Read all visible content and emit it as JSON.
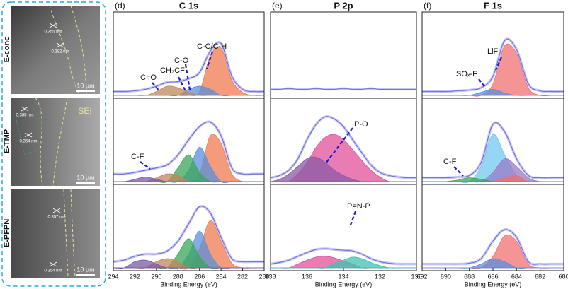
{
  "images": {
    "panels": [
      {
        "label": "E-conc",
        "scale_bar": "10 μm",
        "annotations": [
          "0.355 nm",
          "0.382 nm"
        ]
      },
      {
        "label": "E-TMP",
        "scale_bar": "10 μm",
        "annotations": [
          "0.385 nm",
          "0.364 nm",
          "SEI"
        ]
      },
      {
        "label": "E-PFPN",
        "scale_bar": "10 μm",
        "annotations": [
          "0.357 nm",
          "0.354 nm"
        ]
      }
    ]
  },
  "chart_data": [
    {
      "type": "line",
      "panel_label": "(d)",
      "title": "C 1s",
      "xlim": [
        294,
        280
      ],
      "x": [
        294,
        293,
        292,
        291,
        290,
        289,
        288,
        287,
        286,
        285,
        284,
        283,
        282,
        281,
        280
      ],
      "ylim": [
        0,
        100
      ],
      "annotations": [
        "C=O",
        "CH₂CF₂",
        "C-O",
        "C-C/C-H"
      ],
      "series": [
        {
          "color": "#f07a50",
          "fill": true,
          "values": [
            0,
            0,
            0,
            0,
            0,
            0,
            0,
            0,
            5,
            52,
            62,
            20,
            4,
            0,
            0
          ]
        },
        {
          "color": "#5b8fd9",
          "fill": true,
          "values": [
            0,
            0,
            0,
            0,
            0,
            0,
            0,
            8,
            12,
            8,
            0,
            0,
            0,
            0,
            0
          ]
        },
        {
          "color": "#c0875a",
          "fill": true,
          "values": [
            0,
            0,
            0,
            0,
            5,
            12,
            10,
            4,
            0,
            0,
            0,
            0,
            0,
            0,
            0
          ]
        },
        {
          "color": "#9b9bf0",
          "fill": false,
          "values": [
            5,
            5,
            6,
            8,
            12,
            17,
            18,
            22,
            30,
            58,
            68,
            25,
            8,
            5,
            5
          ]
        }
      ]
    },
    {
      "type": "line",
      "xlim": [
        294,
        280
      ],
      "x": [
        294,
        293,
        292,
        291,
        290,
        289,
        288,
        287,
        286,
        285,
        284,
        283,
        282,
        281,
        280
      ],
      "ylim": [
        0,
        100
      ],
      "annotations": [
        "C-F"
      ],
      "series": [
        {
          "color": "#f07a50",
          "fill": true,
          "values": [
            0,
            0,
            0,
            0,
            0,
            0,
            0,
            0,
            10,
            60,
            50,
            10,
            0,
            0,
            0
          ]
        },
        {
          "color": "#5b8fd9",
          "fill": true,
          "values": [
            0,
            0,
            0,
            0,
            0,
            0,
            0,
            15,
            45,
            20,
            0,
            0,
            0,
            0,
            0
          ]
        },
        {
          "color": "#3aa55a",
          "fill": true,
          "values": [
            0,
            0,
            0,
            0,
            0,
            0,
            18,
            35,
            12,
            0,
            0,
            0,
            0,
            0,
            0
          ]
        },
        {
          "color": "#c0875a",
          "fill": true,
          "values": [
            0,
            0,
            0,
            0,
            5,
            10,
            8,
            0,
            0,
            0,
            0,
            0,
            0,
            0,
            0
          ]
        },
        {
          "color": "#7a5aa5",
          "fill": true,
          "values": [
            0,
            0,
            3,
            6,
            3,
            0,
            0,
            0,
            0,
            0,
            0,
            0,
            0,
            0,
            0
          ]
        },
        {
          "color": "#9b9bf0",
          "fill": false,
          "values": [
            10,
            10,
            12,
            15,
            18,
            22,
            35,
            55,
            72,
            78,
            60,
            18,
            10,
            10,
            10
          ]
        }
      ]
    },
    {
      "type": "line",
      "xlim": [
        294,
        280
      ],
      "xticks": [
        294,
        292,
        290,
        288,
        286,
        284,
        282,
        280
      ],
      "xlabel": "Binding Energy (eV)",
      "x": [
        294,
        293,
        292,
        291,
        290,
        289,
        288,
        287,
        286,
        285,
        284,
        283,
        282,
        281,
        280
      ],
      "ylim": [
        0,
        100
      ],
      "series": [
        {
          "color": "#f07a50",
          "fill": true,
          "values": [
            0,
            0,
            0,
            0,
            0,
            0,
            0,
            0,
            25,
            62,
            35,
            6,
            0,
            0,
            0
          ]
        },
        {
          "color": "#5b8fd9",
          "fill": true,
          "values": [
            0,
            0,
            0,
            0,
            0,
            0,
            0,
            18,
            48,
            18,
            0,
            0,
            0,
            0,
            0
          ]
        },
        {
          "color": "#3aa55a",
          "fill": true,
          "values": [
            0,
            0,
            0,
            0,
            0,
            0,
            18,
            38,
            15,
            0,
            0,
            0,
            0,
            0,
            0
          ]
        },
        {
          "color": "#c0875a",
          "fill": true,
          "values": [
            0,
            0,
            0,
            0,
            8,
            12,
            8,
            0,
            0,
            0,
            0,
            0,
            0,
            0,
            0
          ]
        },
        {
          "color": "#7a5aa5",
          "fill": true,
          "values": [
            0,
            0,
            8,
            10,
            5,
            0,
            0,
            0,
            0,
            0,
            0,
            0,
            0,
            0,
            0
          ]
        },
        {
          "color": "#9b9bf0",
          "fill": false,
          "values": [
            8,
            10,
            15,
            18,
            18,
            22,
            35,
            58,
            80,
            72,
            40,
            12,
            8,
            8,
            8
          ]
        }
      ]
    },
    {
      "type": "line",
      "panel_label": "(e)",
      "title": "P 2p",
      "xlim": [
        138,
        130
      ],
      "x": [
        138,
        137.5,
        137,
        136.5,
        136,
        135.5,
        135,
        134.5,
        134,
        133.5,
        133,
        132.5,
        132,
        131.5,
        131,
        130.5,
        130
      ],
      "ylim": [
        0,
        100
      ],
      "series": [
        {
          "color": "#9b9bf0",
          "fill": false,
          "values": [
            8,
            8,
            9,
            8,
            8,
            9,
            8,
            8,
            9,
            8,
            8,
            9,
            8,
            8,
            8,
            8,
            8
          ]
        }
      ]
    },
    {
      "type": "line",
      "xlim": [
        138,
        130
      ],
      "x": [
        138,
        137.5,
        137,
        136.5,
        136,
        135.5,
        135,
        134.5,
        134,
        133.5,
        133,
        132.5,
        132,
        131.5,
        131,
        130.5,
        130
      ],
      "ylim": [
        0,
        100
      ],
      "annotations": [
        "P-O"
      ],
      "series": [
        {
          "color": "#e0509a",
          "fill": true,
          "values": [
            0,
            0,
            0,
            10,
            25,
            45,
            58,
            62,
            55,
            42,
            28,
            15,
            6,
            0,
            0,
            0,
            0
          ]
        },
        {
          "color": "#8a5aa5",
          "fill": true,
          "values": [
            0,
            3,
            10,
            20,
            30,
            32,
            25,
            15,
            8,
            3,
            0,
            0,
            0,
            0,
            0,
            0,
            0
          ]
        },
        {
          "color": "#9b9bf0",
          "fill": false,
          "values": [
            5,
            8,
            15,
            30,
            55,
            75,
            85,
            82,
            72,
            55,
            38,
            22,
            12,
            8,
            6,
            5,
            5
          ]
        }
      ]
    },
    {
      "type": "line",
      "xlim": [
        138,
        130
      ],
      "xticks": [
        138,
        136,
        134,
        132,
        130
      ],
      "xlabel": "Binding Energy (eV)",
      "x": [
        138,
        137.5,
        137,
        136.5,
        136,
        135.5,
        135,
        134.5,
        134,
        133.5,
        133,
        132.5,
        132,
        131.5,
        131,
        130.5,
        130
      ],
      "ylim": [
        0,
        100
      ],
      "annotations": [
        "P=N-P"
      ],
      "series": [
        {
          "color": "#e0509a",
          "fill": true,
          "values": [
            0,
            0,
            0,
            5,
            10,
            14,
            15,
            13,
            9,
            5,
            0,
            0,
            0,
            0,
            0,
            0,
            0
          ]
        },
        {
          "color": "#40c0b0",
          "fill": true,
          "values": [
            0,
            0,
            0,
            0,
            0,
            0,
            0,
            6,
            10,
            14,
            12,
            7,
            3,
            0,
            0,
            0,
            0
          ]
        },
        {
          "color": "#9b9bf0",
          "fill": false,
          "values": [
            5,
            7,
            10,
            15,
            20,
            24,
            25,
            24,
            23,
            22,
            18,
            12,
            8,
            6,
            5,
            5,
            5
          ]
        }
      ]
    },
    {
      "type": "line",
      "panel_label": "(f)",
      "title": "F 1s",
      "xlim": [
        692,
        680
      ],
      "x": [
        692,
        691,
        690,
        689,
        688,
        687,
        686,
        685,
        684,
        683,
        682,
        681,
        680
      ],
      "ylim": [
        0,
        100
      ],
      "annotations": [
        "SOₓ-F",
        "LiF"
      ],
      "series": [
        {
          "color": "#f07070",
          "fill": true,
          "values": [
            0,
            0,
            0,
            0,
            0,
            0,
            15,
            65,
            55,
            10,
            0,
            0,
            0
          ]
        },
        {
          "color": "#5b8fd9",
          "fill": true,
          "values": [
            0,
            0,
            0,
            0,
            0,
            4,
            8,
            3,
            0,
            0,
            0,
            0,
            0
          ]
        },
        {
          "color": "#9b9bf0",
          "fill": false,
          "values": [
            5,
            5,
            5,
            6,
            7,
            10,
            25,
            72,
            60,
            15,
            6,
            5,
            5
          ]
        }
      ]
    },
    {
      "type": "line",
      "xlim": [
        692,
        680
      ],
      "x": [
        692,
        691,
        690,
        689,
        688,
        687,
        686,
        685,
        684,
        683,
        682,
        681,
        680
      ],
      "ylim": [
        0,
        100
      ],
      "annotations": [
        "C-F"
      ],
      "series": [
        {
          "color": "#70c8f0",
          "fill": true,
          "values": [
            0,
            0,
            0,
            0,
            0,
            20,
            62,
            35,
            8,
            0,
            0,
            0,
            0
          ]
        },
        {
          "color": "#9a7ac8",
          "fill": true,
          "values": [
            0,
            0,
            0,
            0,
            0,
            0,
            12,
            30,
            20,
            5,
            0,
            0,
            0
          ]
        },
        {
          "color": "#f07070",
          "fill": true,
          "values": [
            0,
            0,
            0,
            0,
            0,
            0,
            0,
            5,
            8,
            0,
            0,
            0,
            0
          ]
        },
        {
          "color": "#3aa55a",
          "fill": true,
          "values": [
            0,
            0,
            0,
            2,
            5,
            3,
            0,
            0,
            0,
            0,
            0,
            0,
            0
          ]
        },
        {
          "color": "#9b9bf0",
          "fill": false,
          "values": [
            5,
            5,
            5,
            6,
            8,
            25,
            75,
            65,
            30,
            8,
            5,
            5,
            5
          ]
        }
      ]
    },
    {
      "type": "line",
      "xlim": [
        692,
        680
      ],
      "xticks": [
        692,
        690,
        688,
        686,
        684,
        682,
        680
      ],
      "xlabel": "Binding Energy (eV)",
      "x": [
        692,
        691,
        690,
        689,
        688,
        687,
        686,
        685,
        684,
        683,
        682,
        681,
        680
      ],
      "ylim": [
        0,
        100
      ],
      "series": [
        {
          "color": "#f07070",
          "fill": true,
          "values": [
            0,
            0,
            0,
            0,
            0,
            0,
            15,
            42,
            35,
            5,
            0,
            0,
            0
          ]
        },
        {
          "color": "#5b8fd9",
          "fill": true,
          "values": [
            0,
            0,
            0,
            0,
            0,
            5,
            12,
            8,
            0,
            0,
            0,
            0,
            0
          ]
        },
        {
          "color": "#9b9bf0",
          "fill": false,
          "values": [
            5,
            5,
            5,
            5,
            6,
            12,
            35,
            50,
            40,
            8,
            5,
            5,
            5
          ]
        }
      ]
    }
  ]
}
